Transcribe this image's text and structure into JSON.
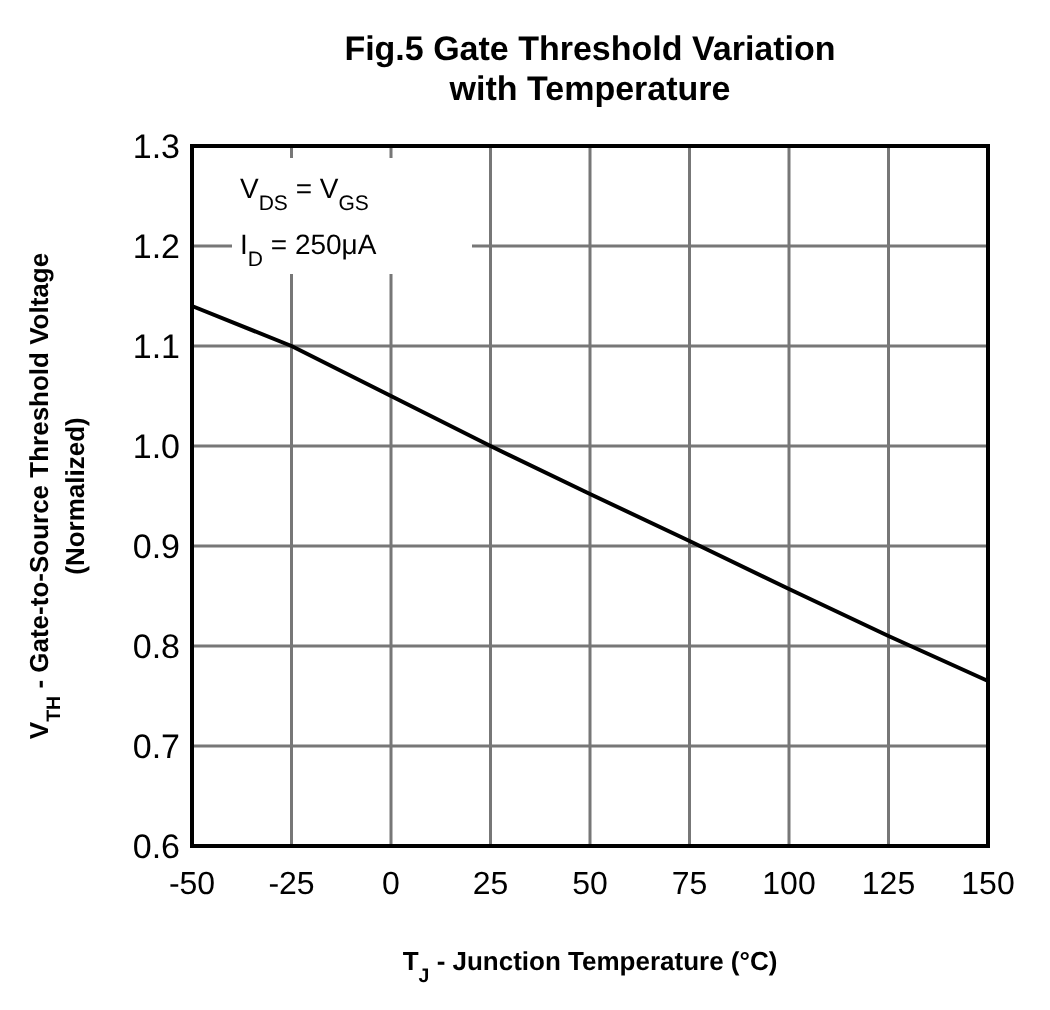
{
  "chart_data": {
    "type": "line",
    "title": "Fig.5 Gate Threshold Variation with Temperature",
    "xlabel": "T$_{J}$ - Junction Temperature (°C)",
    "ylabel": "V$_{TH}$ - Gate-to-Source Threshold Voltage (Normalized)",
    "annotations": [
      "V$_{DS}$ = V$_{GS}$",
      "I$_{D}$ = 250μA"
    ],
    "x": [
      -50,
      -25,
      0,
      25,
      50,
      75,
      100,
      125,
      150
    ],
    "series": [
      {
        "color": "#000000",
        "values": [
          1.14,
          1.1,
          1.05,
          1.0,
          0.952,
          0.905,
          0.857,
          0.81,
          0.765
        ]
      }
    ],
    "xlim": [
      -50,
      150
    ],
    "xticks": [
      -50,
      -25,
      0,
      25,
      50,
      75,
      100,
      125,
      150
    ],
    "ylim": [
      0.6,
      1.3
    ],
    "yticks": [
      0.6,
      0.7,
      0.8,
      0.9,
      {
        "value": 1,
        "label": "1.0"
      },
      1.1,
      1.2,
      1.3
    ],
    "grid": true,
    "marker": "none",
    "line_style": "solid"
  }
}
